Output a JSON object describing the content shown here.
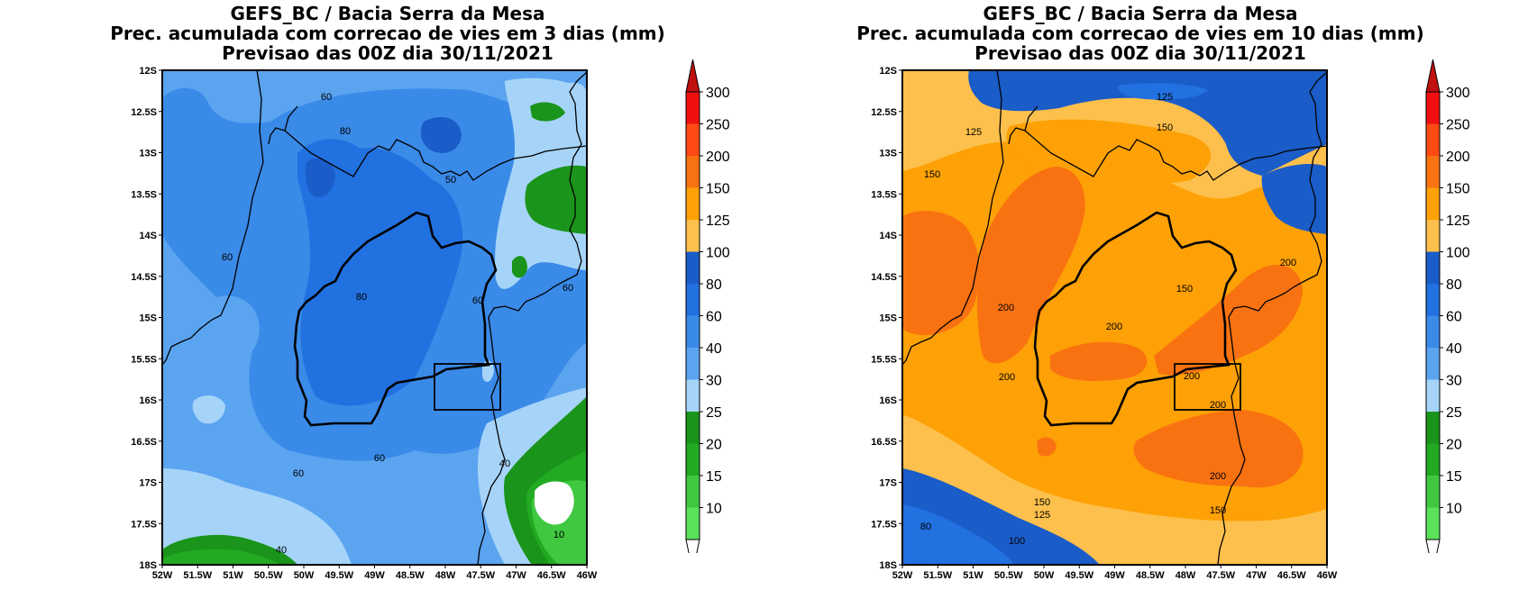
{
  "left_panel": {
    "title_lines": [
      "GEFS_BC / Bacia Serra da Mesa",
      "Prec. acumulada com correcao de vies em 3 dias (mm)",
      "Previsao das 00Z dia 30/11/2021"
    ],
    "contour_labels": [
      "60",
      "80",
      "50",
      "60",
      "80",
      "60",
      "60",
      "60",
      "60",
      "40",
      "40",
      "10"
    ]
  },
  "right_panel": {
    "title_lines": [
      "GEFS_BC / Bacia Serra da Mesa",
      "Prec. acumulada com correcao de vies em 10 dias (mm)",
      "Previsao das 00Z dia 30/11/2021"
    ],
    "contour_labels": [
      "125",
      "150",
      "125",
      "150",
      "200",
      "150",
      "200",
      "200",
      "200",
      "200",
      "200",
      "200",
      "150",
      "125",
      "100",
      "80",
      "150"
    ]
  },
  "y_ticks": [
    "12S",
    "12.5S",
    "13S",
    "13.5S",
    "14S",
    "14.5S",
    "15S",
    "15.5S",
    "16S",
    "16.5S",
    "17S",
    "17.5S",
    "18S"
  ],
  "x_ticks": [
    "52W",
    "51.5W",
    "51W",
    "50.5W",
    "50W",
    "49.5W",
    "49W",
    "48.5W",
    "48W",
    "47.5W",
    "47W",
    "46.5W",
    "46W"
  ],
  "colorbar": {
    "labels": [
      "300",
      "250",
      "200",
      "150",
      "125",
      "100",
      "80",
      "60",
      "40",
      "30",
      "25",
      "20",
      "15",
      "10"
    ],
    "colors": [
      "#f01010",
      "#ff4a14",
      "#f97211",
      "#fea106",
      "#fec04c",
      "#1a5cc8",
      "#2271e0",
      "#3a8ae8",
      "#5aa4f0",
      "#a6d4f8",
      "#1a941a",
      "#22aa22",
      "#40c840",
      "#5ae25a"
    ]
  }
}
